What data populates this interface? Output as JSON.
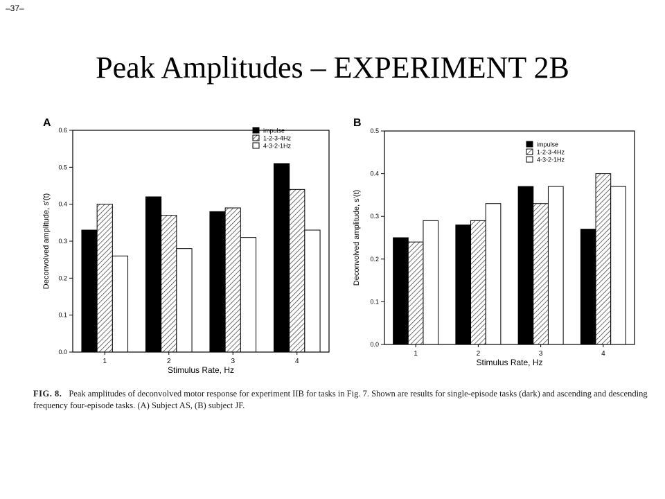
{
  "slide": {
    "page_number": "–37–",
    "title": "Peak Amplitudes – EXPERIMENT 2B"
  },
  "caption": {
    "label": "FIG. 8.",
    "text": "Peak amplitudes of deconvolved motor response for experiment IIB for tasks in Fig. 7. Shown are results for single-episode tasks (dark) and ascending and descending frequency four-episode tasks. (A) Subject AS, (B) subject JF."
  },
  "colors": {
    "impulse": "#000000",
    "ascending": "#ffffff",
    "descending": "#ffffff",
    "hatch": "#333333"
  },
  "chart_data": [
    {
      "type": "bar",
      "panel": "A",
      "categories": [
        "1",
        "2",
        "3",
        "4"
      ],
      "series": [
        {
          "name": "impulse",
          "values": [
            0.33,
            0.42,
            0.38,
            0.51
          ],
          "fill": "solid"
        },
        {
          "name": "1-2-3-4Hz",
          "values": [
            0.4,
            0.37,
            0.39,
            0.44
          ],
          "fill": "hatch"
        },
        {
          "name": "4-3-2-1Hz",
          "values": [
            0.26,
            0.28,
            0.31,
            0.33
          ],
          "fill": "open"
        }
      ],
      "xlabel": "Stimulus Rate, Hz",
      "ylabel": "Deconvolved amplitude, s'(t)",
      "ylim": [
        0,
        0.6
      ],
      "yticks": [
        "0.0",
        "0.1",
        "0.2",
        "0.3",
        "0.4",
        "0.5",
        "0.6"
      ],
      "legend_placement": "top-right",
      "grid": false
    },
    {
      "type": "bar",
      "panel": "B",
      "categories": [
        "1",
        "2",
        "3",
        "4"
      ],
      "series": [
        {
          "name": "impulse",
          "values": [
            0.25,
            0.28,
            0.37,
            0.27
          ],
          "fill": "solid"
        },
        {
          "name": "1-2-3-4Hz",
          "values": [
            0.24,
            0.29,
            0.33,
            0.4
          ],
          "fill": "hatch"
        },
        {
          "name": "4-3-2-1Hz",
          "values": [
            0.29,
            0.33,
            0.37,
            0.37
          ],
          "fill": "open"
        }
      ],
      "xlabel": "Stimulus Rate, Hz",
      "ylabel": "Deconvolved amplitude, s'(t)",
      "ylim": [
        0,
        0.5
      ],
      "yticks": [
        "0.0",
        "0.1",
        "0.2",
        "0.3",
        "0.4",
        "0.5"
      ],
      "legend_placement": "top-right",
      "grid": false
    }
  ]
}
